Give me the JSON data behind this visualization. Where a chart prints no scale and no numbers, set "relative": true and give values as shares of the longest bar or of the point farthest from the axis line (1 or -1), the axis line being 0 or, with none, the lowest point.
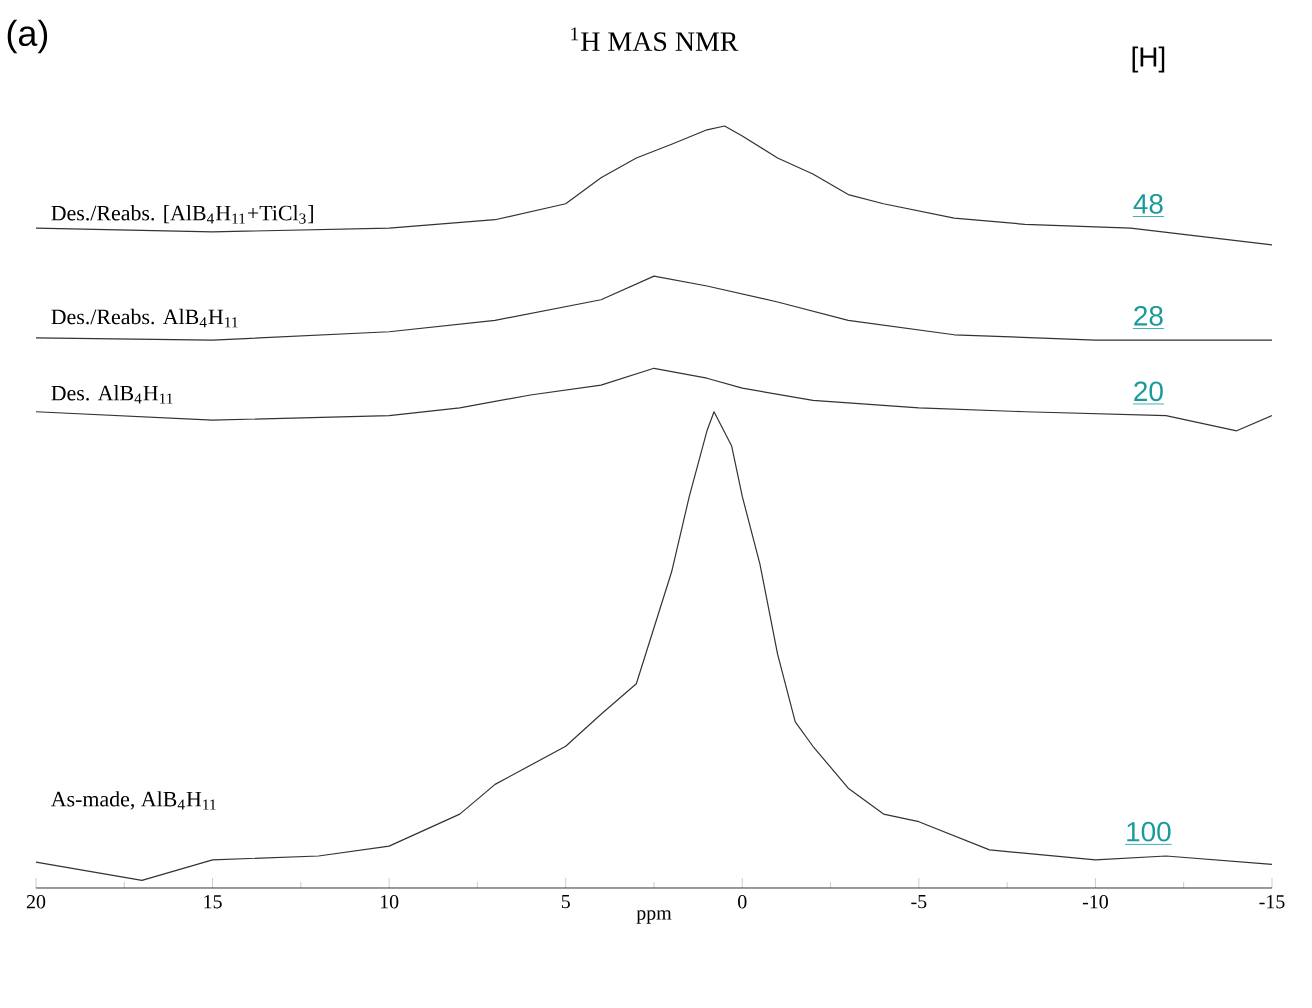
{
  "chart_data": {
    "type": "line",
    "title": "$^{1}$H MAS NMR",
    "xlabel": "ppm",
    "relative": true,
    "xlim": [
      20,
      -15
    ],
    "xticks": [
      20,
      15,
      10,
      5,
      0,
      -5,
      -10,
      -15
    ],
    "annotations": [
      "(a)",
      "[H]",
      "48",
      "28",
      "20",
      "100"
    ],
    "series": [
      {
        "name": "Des./Reabs. [AlB$_{4}$H$_{11}$+TiCl$_{3}$]",
        "color": "#333333",
        "x": [
          20,
          15,
          10,
          7,
          5,
          4,
          3,
          2,
          1,
          0.5,
          0,
          -1,
          -2,
          -3,
          -4,
          -6,
          -8,
          -11,
          -15
        ],
        "values": [
          0.866,
          0.861,
          0.866,
          0.877,
          0.898,
          0.932,
          0.958,
          0.976,
          0.995,
          1.0,
          0.987,
          0.958,
          0.937,
          0.91,
          0.898,
          0.879,
          0.871,
          0.866,
          0.844
        ]
      },
      {
        "name": "Des./Reabs. AlB$_{4}$H$_{11}$",
        "color": "#333333",
        "x": [
          20,
          15,
          10,
          7,
          4,
          2.5,
          1,
          -1,
          -3,
          -6,
          -10,
          -15
        ],
        "values": [
          0.722,
          0.719,
          0.73,
          0.745,
          0.772,
          0.803,
          0.79,
          0.769,
          0.745,
          0.726,
          0.719,
          0.719
        ]
      },
      {
        "name": "Des. AlB$_{4}$H$_{11}$",
        "color": "#333333",
        "x": [
          20,
          15,
          10,
          8,
          6,
          4,
          2.5,
          1,
          0,
          -2,
          -5,
          -8,
          -12,
          -14,
          -15
        ],
        "values": [
          0.625,
          0.614,
          0.62,
          0.63,
          0.647,
          0.66,
          0.682,
          0.669,
          0.656,
          0.64,
          0.63,
          0.625,
          0.62,
          0.6,
          0.62
        ]
      },
      {
        "name": "As-made, AlB$_{4}$H$_{11}$",
        "color": "#333333",
        "x": [
          20,
          17,
          15,
          12,
          10,
          8,
          7,
          5,
          4,
          3,
          2,
          1.5,
          1,
          0.8,
          0.3,
          0,
          -0.5,
          -1,
          -1.5,
          -2,
          -3,
          -4,
          -5,
          -7,
          -10,
          -12,
          -15
        ],
        "values": [
          0.034,
          0.01,
          0.037,
          0.042,
          0.055,
          0.097,
          0.136,
          0.186,
          0.228,
          0.268,
          0.415,
          0.514,
          0.6,
          0.625,
          0.58,
          0.514,
          0.425,
          0.307,
          0.218,
          0.186,
          0.131,
          0.097,
          0.087,
          0.05,
          0.037,
          0.042,
          0.031
        ]
      }
    ]
  }
}
